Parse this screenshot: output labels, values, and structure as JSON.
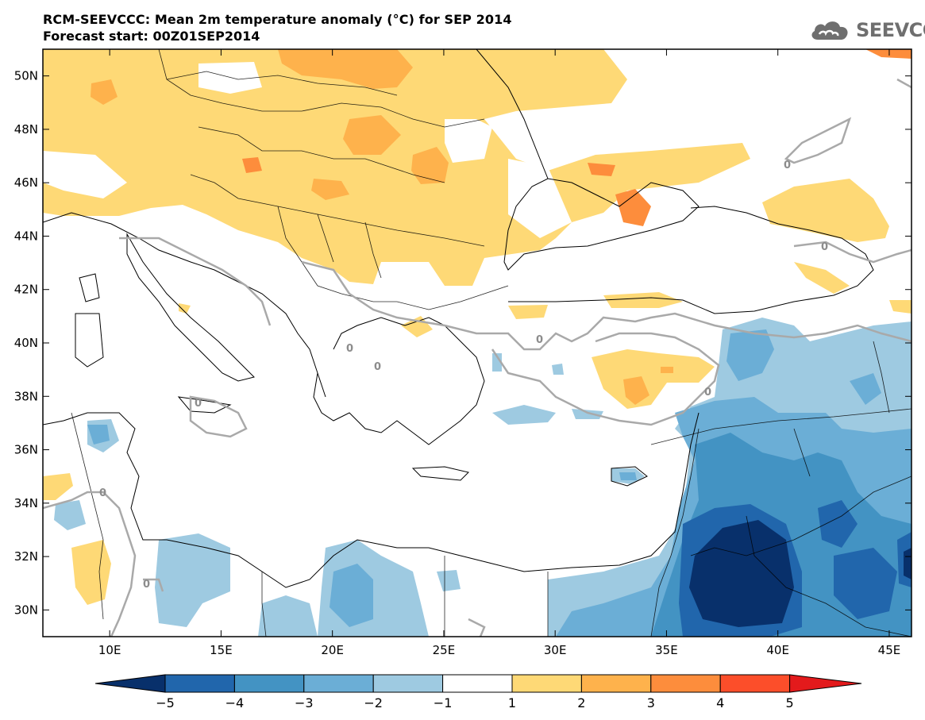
{
  "title": "RCM-SEEVCCC: Mean 2m temperature anomaly (°C) for SEP 2014",
  "subtitle": "Forecast start: 00Z01SEP2014",
  "logo_text": "SEEVCCC",
  "map": {
    "lon_range": [
      7,
      46
    ],
    "lat_range": [
      29,
      51
    ],
    "lon_ticks": [
      "10E",
      "15E",
      "20E",
      "25E",
      "30E",
      "35E",
      "40E",
      "45E"
    ],
    "lat_ticks": [
      "30N",
      "32N",
      "34N",
      "36N",
      "38N",
      "40N",
      "42N",
      "44N",
      "46N",
      "48N",
      "50N"
    ],
    "contour_label": "0"
  },
  "colorbar": {
    "labels": [
      "−5",
      "−4",
      "−3",
      "−2",
      "−1",
      "1",
      "2",
      "3",
      "4",
      "5"
    ],
    "colors": {
      "below_-5": "#08306b",
      "-5_-4": "#2166ac",
      "-4_-3": "#4393c3",
      "-3_-2": "#6baed6",
      "-2_-1": "#9ecae1",
      "-1_1": "#ffffff",
      "1_2": "#fed976",
      "2_3": "#feb24c",
      "3_4": "#fd8d3c",
      "4_5": "#fc4e2a",
      "above_5": "#e31a1c"
    }
  }
}
